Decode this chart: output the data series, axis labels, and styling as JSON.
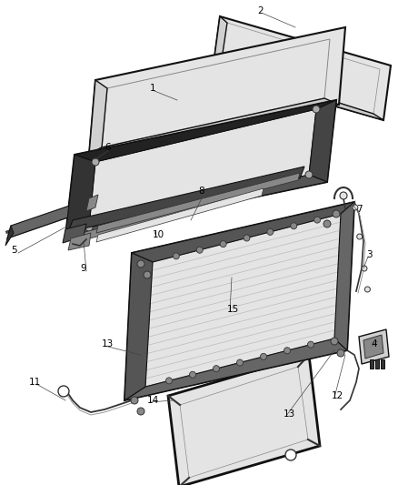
{
  "background_color": "#ffffff",
  "fig_width": 4.39,
  "fig_height": 5.33,
  "dpi": 100,
  "outline": "#111111",
  "gray_dark": "#333333",
  "gray_mid": "#888888",
  "gray_light": "#cccccc",
  "gray_lighter": "#e4e4e4",
  "gray_fill": "#d0d0d0",
  "label_fs": 7.5
}
